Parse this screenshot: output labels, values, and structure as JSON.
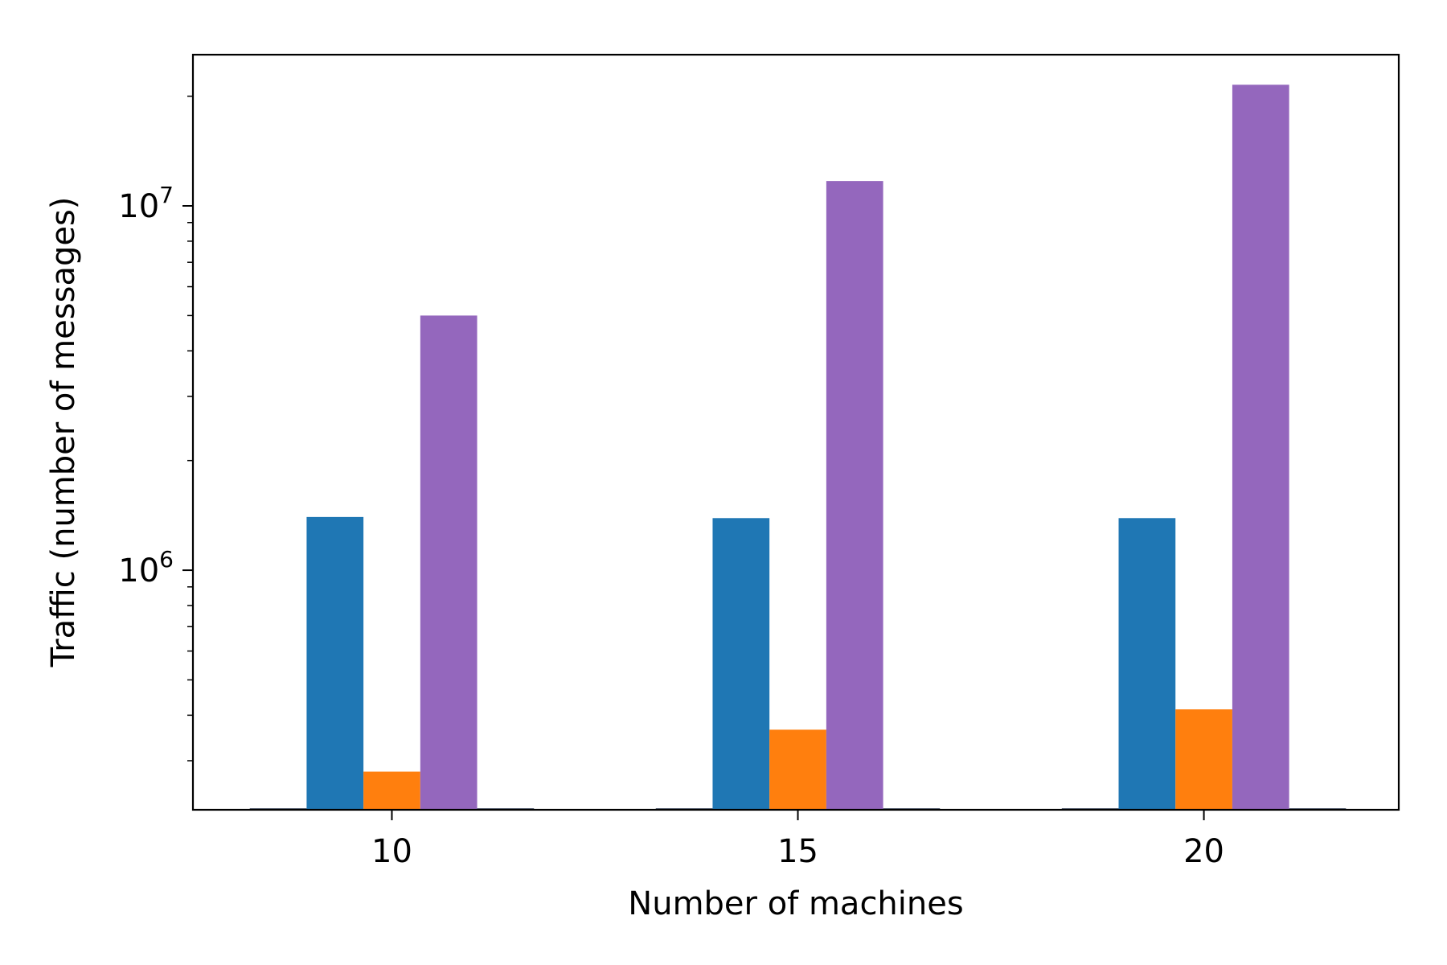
{
  "chart_data": {
    "type": "bar",
    "xlabel": "Number of machines",
    "ylabel": "Traffic (number of messages)",
    "y_scale": "log",
    "ylim": [
      220000,
      26000000
    ],
    "categories": [
      "10",
      "15",
      "20"
    ],
    "y_tick_major": [
      {
        "value": 1000000,
        "base": "10",
        "exponent": "6"
      },
      {
        "value": 10000000,
        "base": "10",
        "exponent": "7"
      }
    ],
    "legend": "none",
    "grid": false,
    "series": [
      {
        "values": [
          1400000,
          1390000,
          1390000
        ],
        "color": "#1f77b4"
      },
      {
        "values": [
          280000,
          365000,
          415000
        ],
        "color": "#ff7f0e"
      },
      {
        "values": [
          5000000,
          11700000,
          21500000
        ],
        "color": "#9467bd"
      }
    ]
  }
}
